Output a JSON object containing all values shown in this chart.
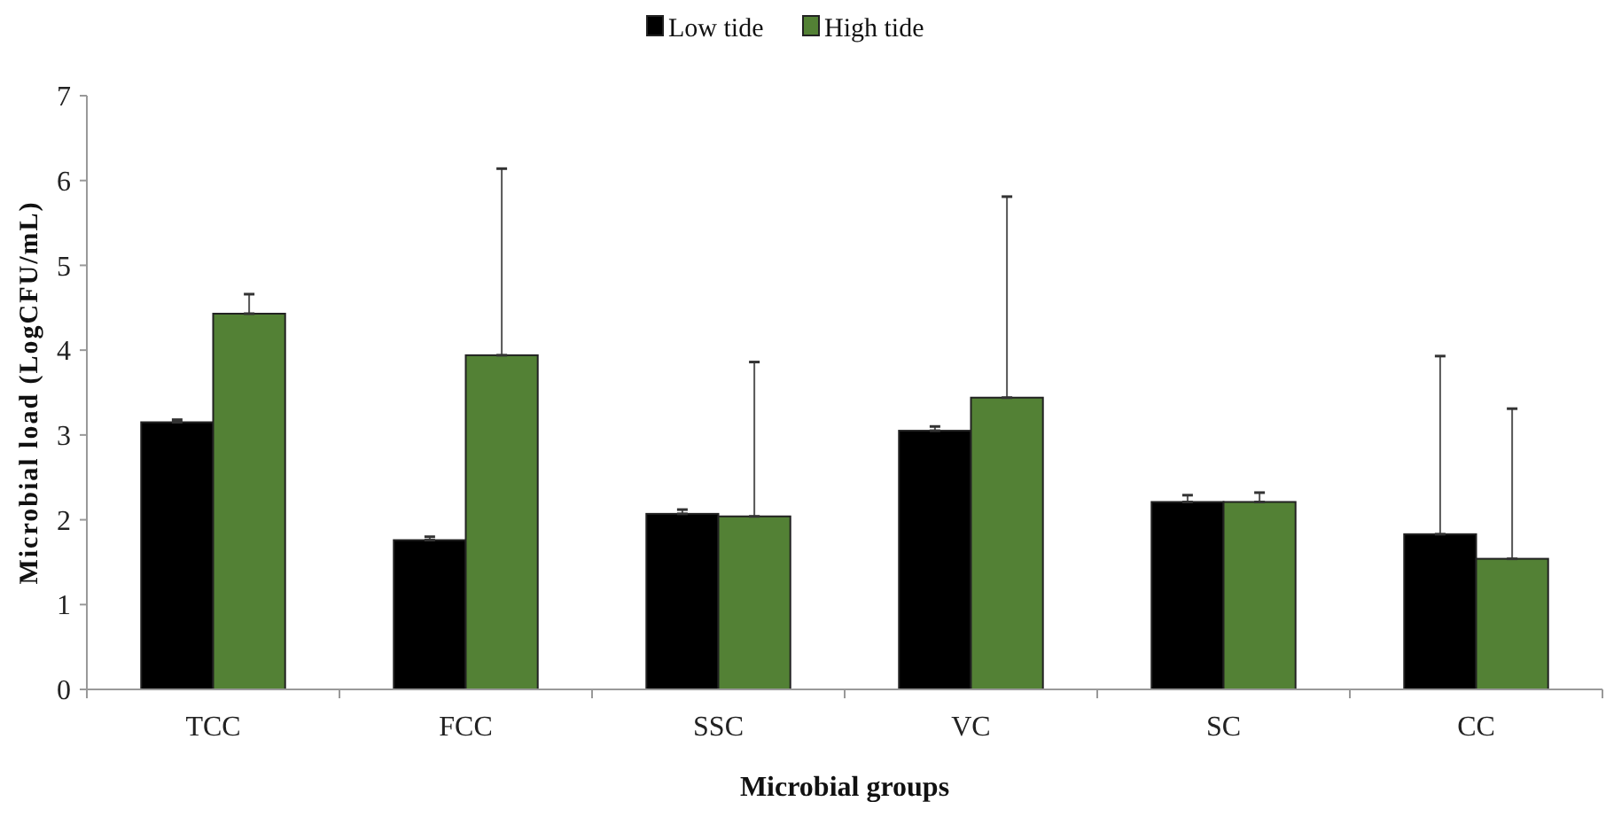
{
  "chart_data": {
    "type": "bar",
    "xlabel": "Microbial groups",
    "ylabel": "Microbial load (LogCFU/mL)",
    "categories": [
      "TCC",
      "FCC",
      "SSC",
      "VC",
      "SC",
      "CC"
    ],
    "series": [
      {
        "name": "Low tide",
        "color": "#000000",
        "values": [
          3.15,
          1.76,
          2.07,
          3.05,
          2.21,
          1.83
        ],
        "errors": [
          [
            3.15,
            3.18
          ],
          [
            1.76,
            1.8
          ],
          [
            2.07,
            2.12
          ],
          [
            3.05,
            3.1
          ],
          [
            2.21,
            2.29
          ],
          [
            1.83,
            3.93
          ]
        ]
      },
      {
        "name": "High tide",
        "color": "#538135",
        "values": [
          4.43,
          3.94,
          2.04,
          3.44,
          2.21,
          1.54
        ],
        "errors": [
          [
            4.43,
            4.66
          ],
          [
            3.94,
            6.14
          ],
          [
            2.04,
            3.86
          ],
          [
            3.44,
            5.81
          ],
          [
            2.21,
            2.32
          ],
          [
            1.54,
            3.31
          ]
        ]
      }
    ],
    "ylim": [
      0,
      7
    ],
    "yticks": [
      0,
      1,
      2,
      3,
      4,
      5,
      6,
      7
    ],
    "grid": false,
    "legend": "top"
  }
}
